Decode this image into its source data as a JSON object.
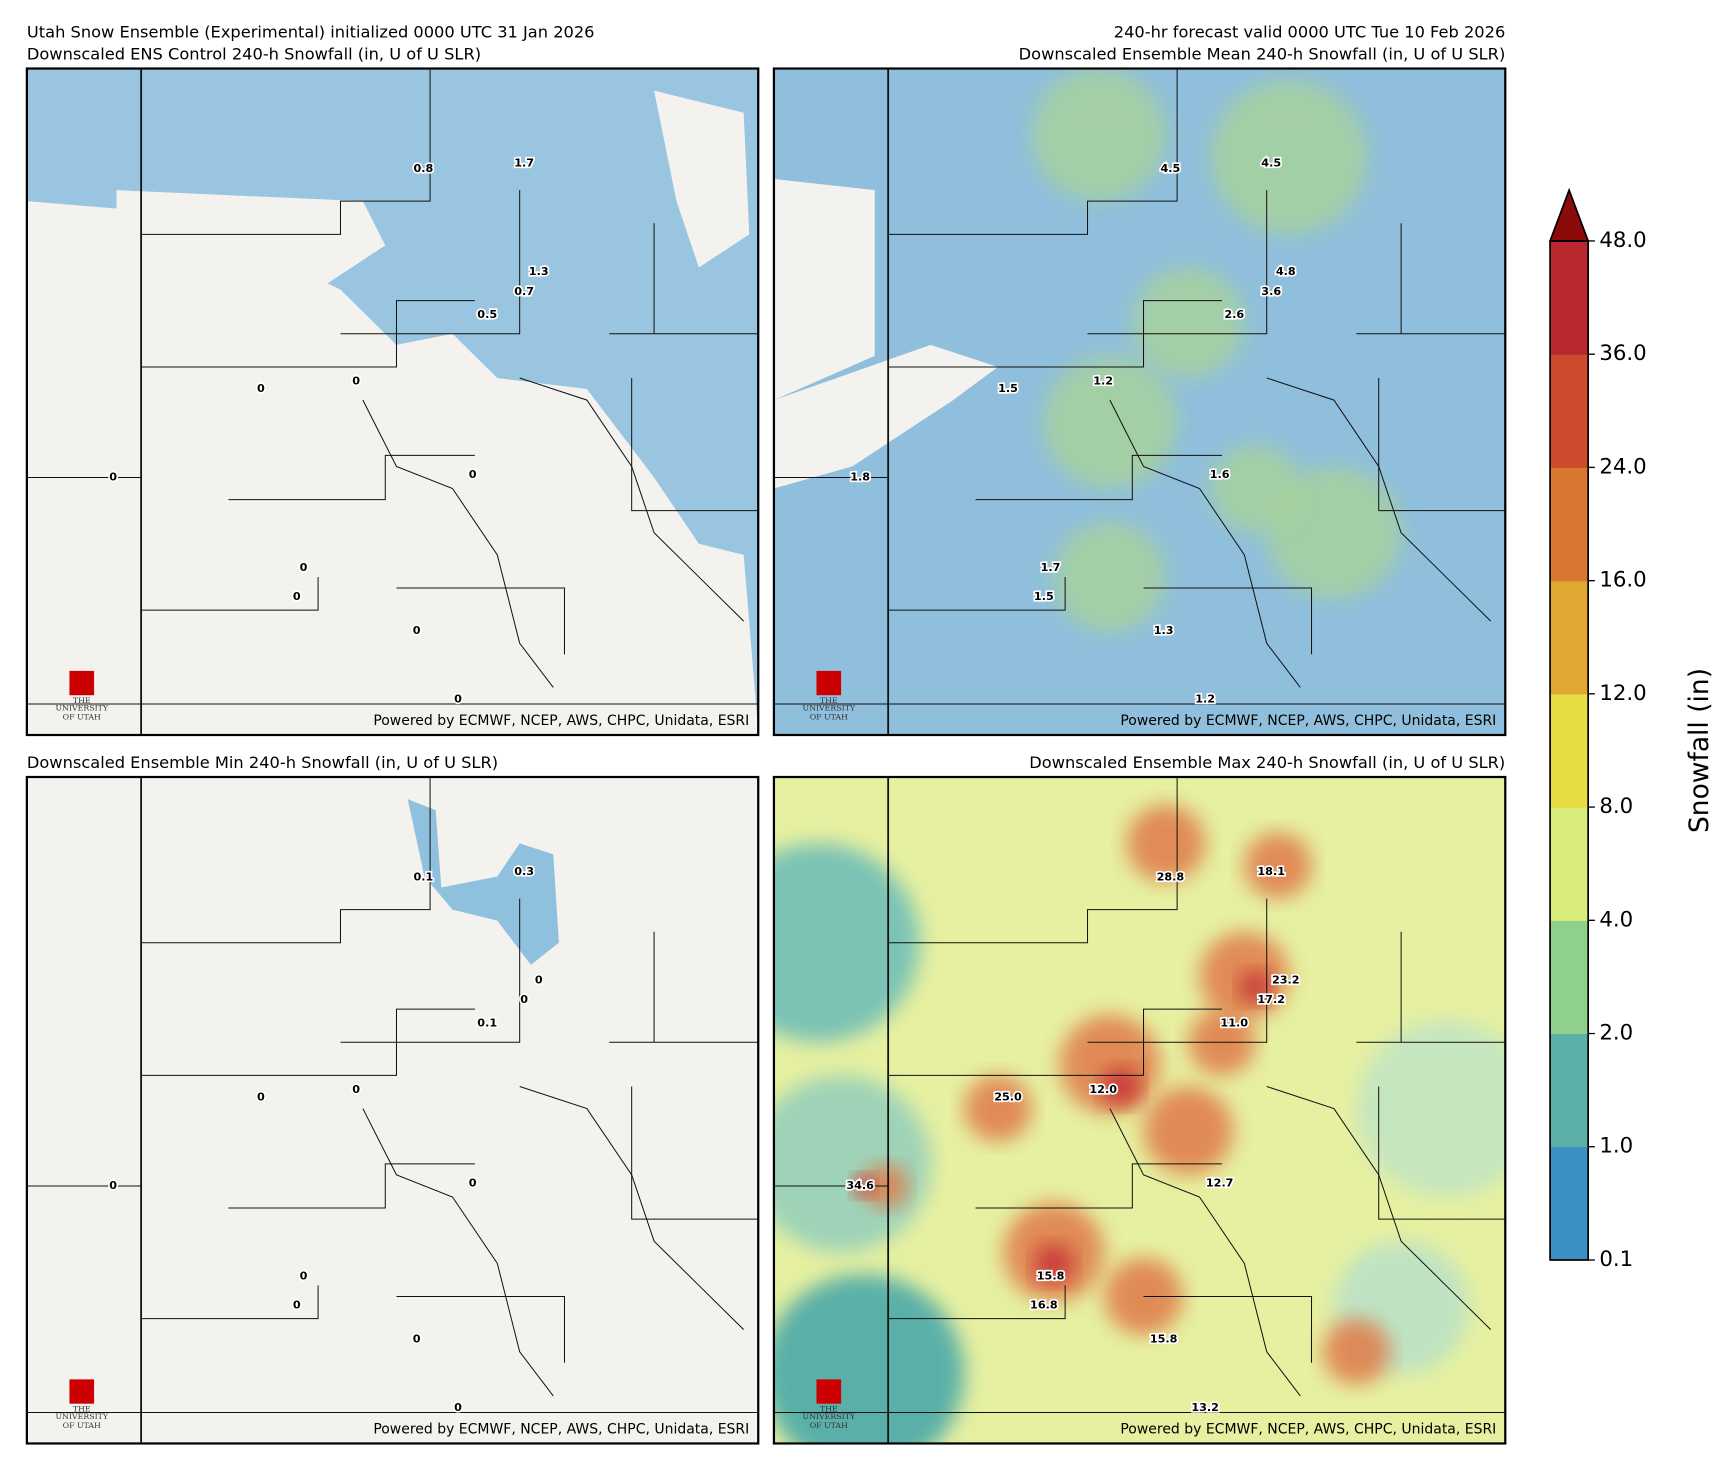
{
  "header": {
    "left": "Utah Snow Ensemble (Experimental) initialized 0000 UTC 31 Jan 2026",
    "right": "240-hr forecast valid 0000 UTC Tue 10 Feb 2026"
  },
  "logo": {
    "top": "THE",
    "middle": "UNIVERSITY",
    "bottom": "OF UTAH"
  },
  "panels": [
    {
      "title": "Downscaled ENS Control 240-h Snowfall (in, U of U SLR)",
      "labels": [
        "0.8",
        "1.7",
        "1.3",
        "0.7",
        "0.5",
        "0",
        "0",
        "0",
        "0",
        "0",
        "0",
        "0",
        "0"
      ],
      "credit": "Powered by ECMWF, NCEP, AWS, CHPC, Unidata, ESRI"
    },
    {
      "title": "Downscaled Ensemble Mean 240-h Snowfall (in, U of U SLR)",
      "labels": [
        "4.5",
        "4.5",
        "4.8",
        "3.6",
        "2.6",
        "1.5",
        "1.2",
        "1.8",
        "1.6",
        "1.7",
        "1.5",
        "1.3",
        "1.2"
      ],
      "credit": "Powered by ECMWF, NCEP, AWS, CHPC, Unidata, ESRI"
    },
    {
      "title": "Downscaled Ensemble Min 240-h Snowfall (in, U of U SLR)",
      "labels": [
        "0.1",
        "0.3",
        "0",
        "0",
        "0.1",
        "0",
        "0",
        "0",
        "0",
        "0",
        "0",
        "0",
        "0"
      ],
      "credit": "Powered by ECMWF, NCEP, AWS, CHPC, Unidata, ESRI"
    },
    {
      "title": "Downscaled Ensemble Max 240-h Snowfall (in, U of U SLR)",
      "labels": [
        "28.8",
        "18.1",
        "23.2",
        "17.2",
        "11.0",
        "25.0",
        "12.0",
        "34.6",
        "12.7",
        "15.8",
        "16.8",
        "15.8",
        "13.2"
      ],
      "credit": "Powered by ECMWF, NCEP, AWS, CHPC, Unidata, ESRI"
    }
  ],
  "colorbar": {
    "label": "Snowfall (in)",
    "ticks": [
      "0.1",
      "1.0",
      "2.0",
      "4.0",
      "8.0",
      "12.0",
      "16.0",
      "24.0",
      "36.0",
      "48.0"
    ],
    "colors": [
      "#3a8fc4",
      "#5ab0a8",
      "#8fd18a",
      "#d7ec7a",
      "#e8dc45",
      "#e0a832",
      "#d97630",
      "#cc4b2c",
      "#b8282e",
      "#8b0a0a"
    ]
  }
}
